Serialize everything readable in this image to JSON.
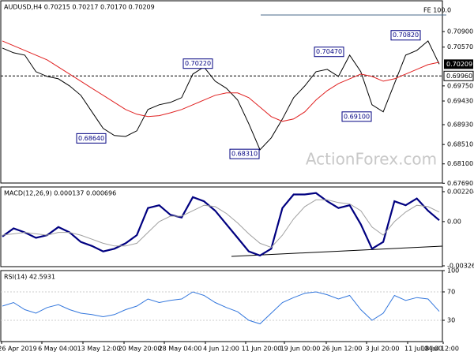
{
  "chart_data": [
    {
      "type": "line",
      "title": "AUDUSD,H4  0.70215 0.70217 0.70170 0.70209",
      "ylim": [
        0.67695,
        0.7155
      ],
      "yticks": [
        {
          "value": 0.709,
          "label": "0.70900"
        },
        {
          "value": 0.7057,
          "label": "0.70570"
        },
        {
          "value": 0.6975,
          "label": "0.69750"
        },
        {
          "value": 0.6943,
          "label": "0.69430"
        },
        {
          "value": 0.6893,
          "label": "0.68930"
        },
        {
          "value": 0.6851,
          "label": "0.68510"
        },
        {
          "value": 0.681,
          "label": "0.68100"
        },
        {
          "value": 0.6769,
          "label": "0.67690"
        }
      ],
      "series": [
        {
          "color": "#000000",
          "values": [
            0.7055,
            0.7045,
            0.704,
            0.7005,
            0.6995,
            0.699,
            0.6975,
            0.6955,
            0.692,
            0.6885,
            0.687,
            0.6868,
            0.688,
            0.6925,
            0.6935,
            0.694,
            0.695,
            0.7,
            0.7015,
            0.6985,
            0.697,
            0.6945,
            0.6895,
            0.684,
            0.6865,
            0.6905,
            0.695,
            0.6975,
            0.7005,
            0.701,
            0.6995,
            0.704,
            0.7005,
            0.6935,
            0.692,
            0.698,
            0.704,
            0.705,
            0.707,
            0.7021
          ]
        },
        {
          "color": "#e02020",
          "values": [
            0.707,
            0.706,
            0.705,
            0.704,
            0.703,
            0.7015,
            0.7,
            0.6985,
            0.697,
            0.6955,
            0.694,
            0.6925,
            0.6915,
            0.691,
            0.6912,
            0.6918,
            0.6925,
            0.6935,
            0.6945,
            0.6955,
            0.696,
            0.696,
            0.695,
            0.693,
            0.691,
            0.69,
            0.6905,
            0.692,
            0.6945,
            0.6965,
            0.698,
            0.699,
            0.7,
            0.6995,
            0.6985,
            0.699,
            0.7,
            0.701,
            0.702,
            0.7025
          ]
        }
      ],
      "annotations": [
        {
          "value": 0.6864,
          "label": "0.68640"
        },
        {
          "value": 0.7022,
          "label": "0.70220"
        },
        {
          "value": 0.6831,
          "label": "0.68310"
        },
        {
          "value": 0.7047,
          "label": "0.70470"
        },
        {
          "value": 0.691,
          "label": "0.69100"
        },
        {
          "value": 0.7082,
          "label": "0.70820"
        }
      ],
      "level": {
        "value": 0.6996,
        "label": "0.69960"
      },
      "current_price": {
        "value": 0.70209,
        "label": "0.70209"
      },
      "fe_label": "FE 100.0",
      "watermark": "ActionForex.com"
    },
    {
      "type": "line",
      "title": "MACD(12,26,9) 0.000137 0.000696",
      "ylim": [
        -0.00332,
        0.00255
      ],
      "yticks": [
        0.002204,
        {
          "value": 0,
          "label": "0.00"
        },
        -0.003262
      ],
      "series": [
        {
          "color": "#000080",
          "values": [
            -0.0011,
            -0.0005,
            -0.0008,
            -0.0012,
            -0.001,
            -0.0004,
            -0.0008,
            -0.0015,
            -0.0018,
            -0.0022,
            -0.002,
            -0.0016,
            -0.001,
            0.001,
            0.0012,
            0.0005,
            0.0003,
            0.0018,
            0.0015,
            0.0008,
            -0.0002,
            -0.0012,
            -0.0022,
            -0.0025,
            -0.002,
            0.001,
            0.002,
            0.002,
            0.0021,
            0.0015,
            0.001,
            0.0012,
            -0.0002,
            -0.002,
            -0.0015,
            0.0015,
            0.0012,
            0.0017,
            0.0008,
            0.0001
          ]
        },
        {
          "color": "#a0a0a0",
          "values": [
            -0.001,
            -0.0009,
            -0.0008,
            -0.0009,
            -0.001,
            -0.0008,
            -0.0008,
            -0.001,
            -0.0013,
            -0.0016,
            -0.0018,
            -0.0018,
            -0.0016,
            -0.0008,
            0,
            0.0004,
            0.0004,
            0.0008,
            0.0012,
            0.0011,
            0.0006,
            -0.0001,
            -0.0009,
            -0.0016,
            -0.0019,
            -0.001,
            0.0002,
            0.0011,
            0.0016,
            0.0016,
            0.0014,
            0.0013,
            0.0008,
            -0.0004,
            -0.001,
            0,
            0.0007,
            0.0012,
            0.0011,
            0.0007
          ]
        }
      ]
    },
    {
      "type": "line",
      "title": "RSI(14) 42.5931",
      "ylim": [
        0,
        100
      ],
      "yticks": [
        100,
        70,
        30
      ],
      "series": [
        {
          "color": "#3377dd",
          "values": [
            50,
            55,
            45,
            40,
            48,
            52,
            45,
            40,
            38,
            35,
            38,
            45,
            50,
            60,
            55,
            58,
            60,
            70,
            65,
            55,
            48,
            42,
            30,
            25,
            40,
            55,
            62,
            68,
            70,
            66,
            60,
            65,
            45,
            30,
            40,
            65,
            58,
            62,
            60,
            42.5931
          ]
        }
      ],
      "xticks": [
        "26 Apr 2019",
        "6 May 04:00",
        "13 May 12:00",
        "20 May 20:00",
        "28 May 04:00",
        "4 Jun 12:00",
        "11 Jun 20:00",
        "19 Jun 00:00",
        "26 Jun 12:00",
        "3 Jul 20:00",
        "11 Jul 04:00",
        "18 Jul 12:00"
      ]
    }
  ]
}
